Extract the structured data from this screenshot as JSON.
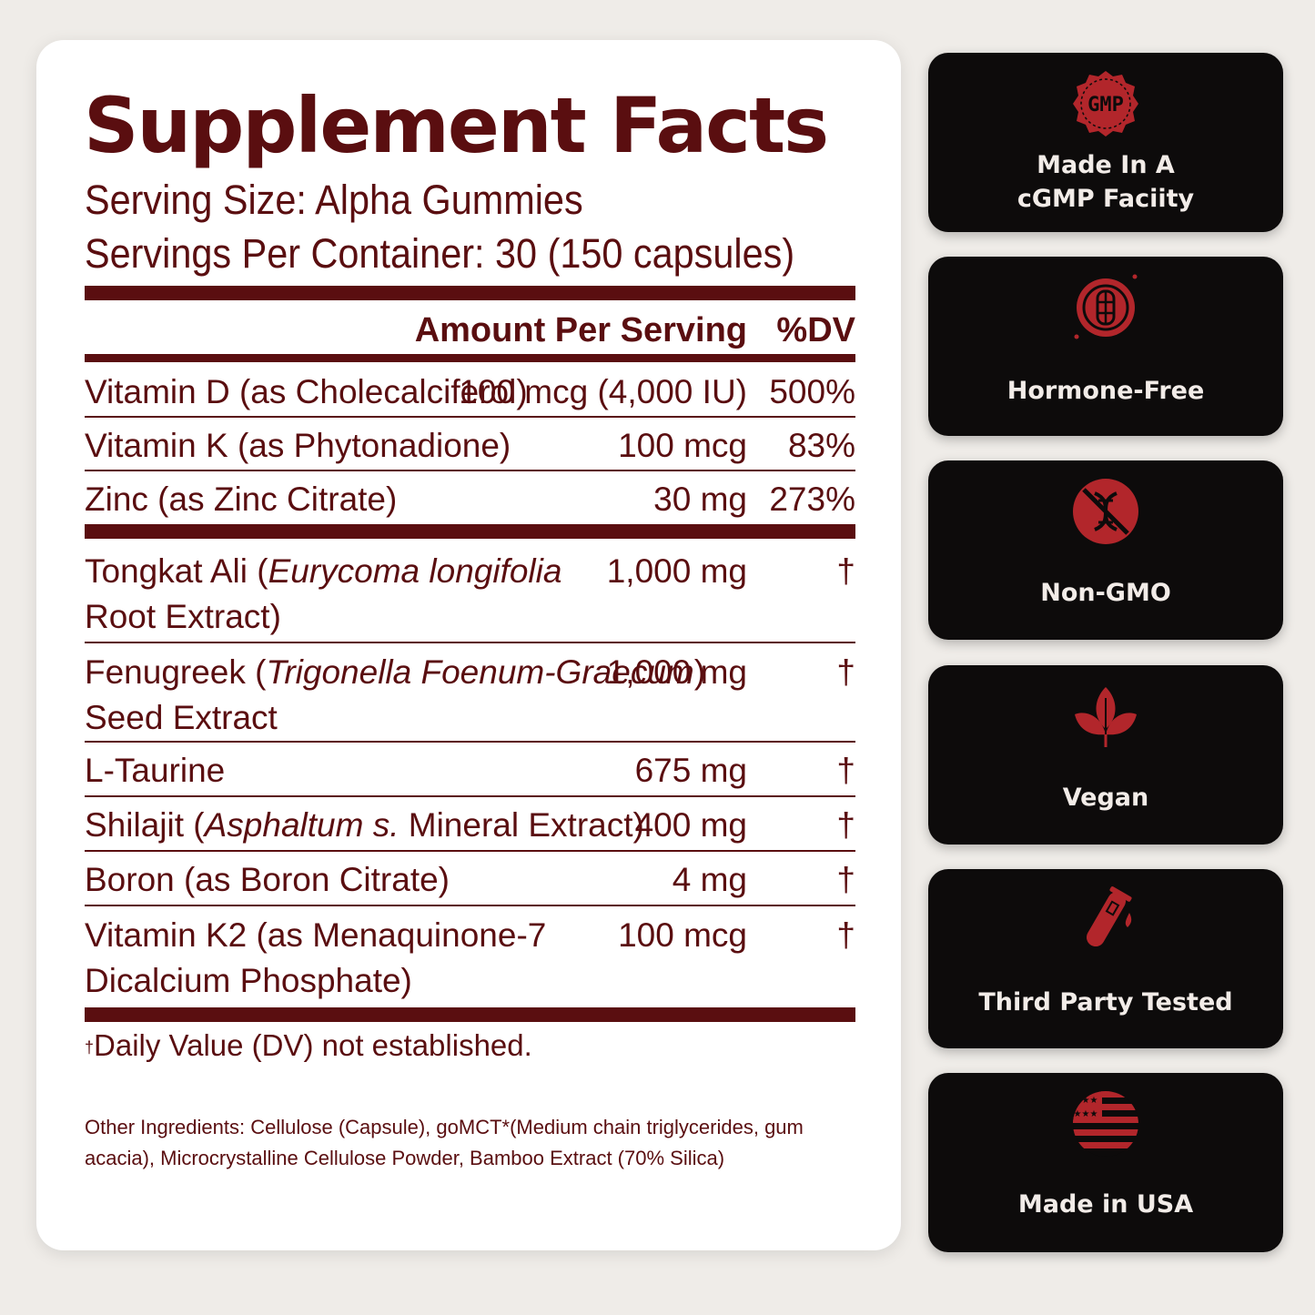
{
  "facts": {
    "title": "Supplement Facts",
    "serving_size": "Serving Size: Alpha Gummies",
    "servings_per_container": "Servings Per Container: 30 (150 capsules)",
    "header_amount": "Amount Per Serving",
    "header_dv": "%DV",
    "rows": [
      {
        "name": "Vitamin D (as Cholecalciferol)",
        "amount": "100 mcg (4,000 IU)",
        "dv": "500%"
      },
      {
        "name": "Vitamin K (as Phytonadione)",
        "amount": "100 mcg",
        "dv": "83%"
      },
      {
        "name": "Zinc (as Zinc Citrate)",
        "amount": "30 mg",
        "dv": "273%"
      },
      {
        "name_a": "Tongkat Ali (",
        "name_i": "Eurycoma longifolia",
        "name_b": "Root Extract)",
        "amount": "1,000 mg",
        "dv": "†"
      },
      {
        "name_a": "Fenugreek (",
        "name_i": "Trigonella Foenum-Graecum",
        "name_c": ")",
        "name_b": "Seed Extract",
        "amount": "1,000 mg",
        "dv": "†"
      },
      {
        "name": "L-Taurine",
        "amount": "675 mg",
        "dv": "†"
      },
      {
        "name_a": "Shilajit (",
        "name_i": "Asphaltum s.",
        "name_c": " Mineral Extract)",
        "amount": "400 mg",
        "dv": "†"
      },
      {
        "name": "Boron (as Boron Citrate)",
        "amount": "4 mg",
        "dv": "†"
      },
      {
        "name_a": "Vitamin K2 (as Menaquinone-7",
        "name_b": "Dicalcium Phosphate)",
        "amount": "100 mcg",
        "dv": "†"
      }
    ],
    "footnote_mark": "†",
    "footnote": "Daily Value (DV) not established.",
    "other_ingredients": "Other Ingredients: Cellulose (Capsule), goMCT*(Medium chain triglycerides, gum acacia), Microcrystalline Cellulose Powder, Bamboo Extract (70% Silica)"
  },
  "badges": [
    {
      "label": "Made In A\ncGMP Faciity",
      "icon": "gmp-seal-icon",
      "icon_text": "GMP"
    },
    {
      "label": "Hormone-Free",
      "icon": "hormone-free-icon"
    },
    {
      "label": "Non-GMO",
      "icon": "non-gmo-icon"
    },
    {
      "label": "Vegan",
      "icon": "vegan-leaf-icon"
    },
    {
      "label": "Third Party Tested",
      "icon": "test-tube-icon"
    },
    {
      "label": "Made in USA",
      "icon": "usa-flag-icon"
    }
  ],
  "colors": {
    "accent": "#5a0e10",
    "icon_red": "#b2262b",
    "badge_bg": "#0d0b0b",
    "page_bg": "#efece8"
  }
}
